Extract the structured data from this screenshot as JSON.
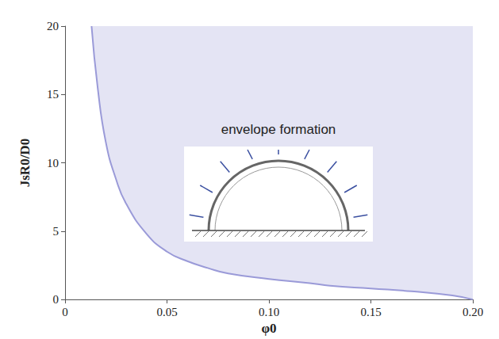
{
  "chart_data": {
    "type": "area",
    "xlabel": "φ0",
    "ylabel": "JsR0/D0",
    "annotation": "envelope formation",
    "x": [
      0.013,
      0.016,
      0.02,
      0.025,
      0.03,
      0.04,
      0.05,
      0.06,
      0.07,
      0.08,
      0.1,
      0.12,
      0.13,
      0.15,
      0.17,
      0.19,
      0.2
    ],
    "values": [
      20,
      15.5,
      11.5,
      8.8,
      7,
      4.8,
      3.5,
      2.8,
      2.3,
      1.9,
      1.5,
      1.2,
      1.0,
      0.8,
      0.6,
      0.3,
      0
    ],
    "color": "#9a9ad8",
    "xlim": [
      0,
      0.2
    ],
    "xticks": [
      0,
      0.05,
      {
        "value": 0.1,
        "label": "0.10"
      },
      0.15,
      {
        "value": 0.2,
        "label": "0.20"
      }
    ],
    "ylim": [
      0,
      20
    ],
    "yticks": [
      0,
      5,
      10,
      15,
      20
    ],
    "grid": false
  }
}
